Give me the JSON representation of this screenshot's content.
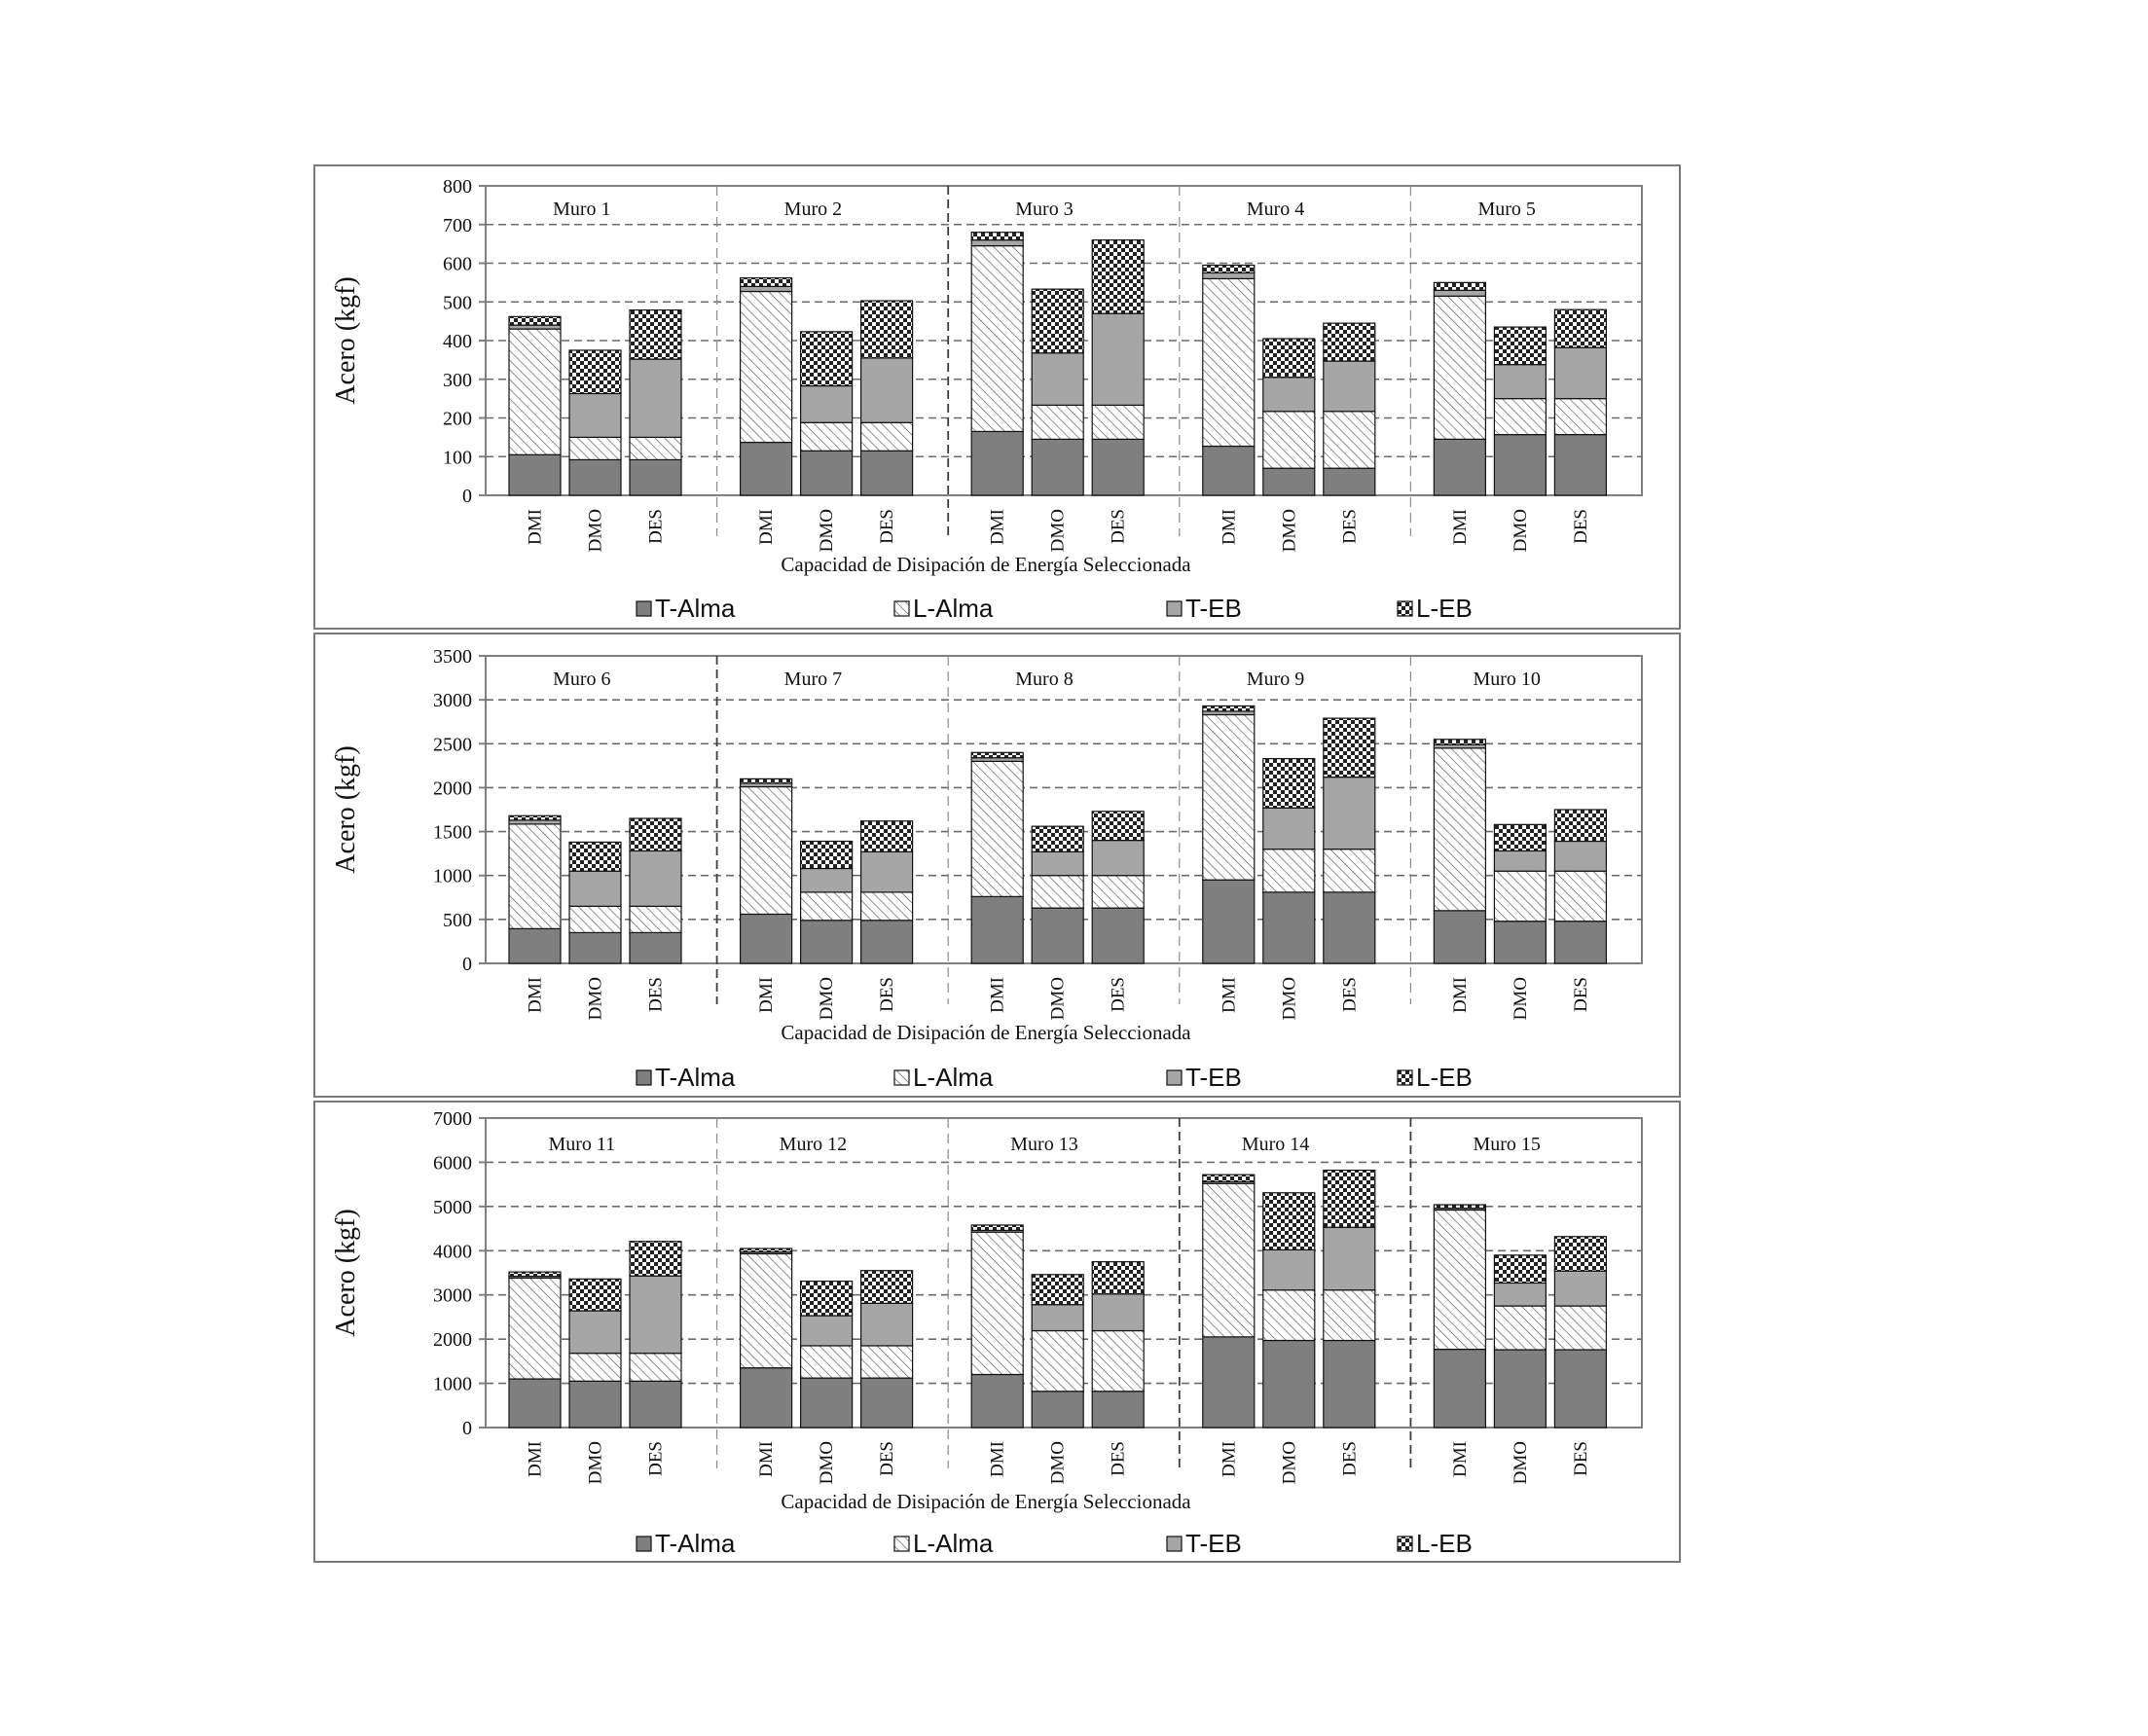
{
  "colors": {
    "t_alma": "#7f7f7f",
    "t_eb": "#a6a6a6",
    "axis": "#808080",
    "grid": "#6b6b6b",
    "divider": "#8c8c8c",
    "divider_strong": "#3d3d3d"
  },
  "legend": {
    "items": [
      {
        "label": "T-Alma",
        "pattern": "solid-dark"
      },
      {
        "label": "L-Alma",
        "pattern": "diagonal-hatch"
      },
      {
        "label": "T-EB",
        "pattern": "solid-light"
      },
      {
        "label": "L-EB",
        "pattern": "checkerboard"
      }
    ]
  },
  "chart_data": [
    {
      "type": "bar",
      "stacked": true,
      "ylabel": "Acero (kgf)",
      "xlabel": "Capacidad de Disipación de Energía Seleccionada",
      "ylim": [
        0,
        800
      ],
      "yticks": [
        0,
        100,
        200,
        300,
        400,
        500,
        600,
        700,
        800
      ],
      "grid": true,
      "legend_position": "bottom",
      "categories": [
        "DMI",
        "DMO",
        "DES"
      ],
      "group_divider_styles": [
        "light",
        "strong",
        "light",
        "light"
      ],
      "groups": [
        {
          "name": "Muro 1",
          "series": {
            "T-Alma": [
              105,
              92,
              92
            ],
            "L-Alma": [
              325,
              58,
              58
            ],
            "T-EB": [
              10,
              113,
              202
            ],
            "L-EB": [
              22,
              112,
              127
            ]
          }
        },
        {
          "name": "Muro 2",
          "series": {
            "T-Alma": [
              137,
              115,
              115
            ],
            "L-Alma": [
              390,
              73,
              73
            ],
            "T-EB": [
              13,
              95,
              167
            ],
            "L-EB": [
              22,
              140,
              148
            ]
          }
        },
        {
          "name": "Muro 3",
          "series": {
            "T-Alma": [
              165,
              145,
              145
            ],
            "L-Alma": [
              480,
              88,
              88
            ],
            "T-EB": [
              15,
              135,
              237
            ],
            "L-EB": [
              20,
              165,
              190
            ]
          }
        },
        {
          "name": "Muro 4",
          "series": {
            "T-Alma": [
              127,
              70,
              70
            ],
            "L-Alma": [
              433,
              147,
              147
            ],
            "T-EB": [
              15,
              88,
              130
            ],
            "L-EB": [
              20,
              100,
              98
            ]
          }
        },
        {
          "name": "Muro 5",
          "series": {
            "T-Alma": [
              145,
              157,
              157
            ],
            "L-Alma": [
              370,
              93,
              93
            ],
            "T-EB": [
              15,
              88,
              132
            ],
            "L-EB": [
              20,
              97,
              98
            ]
          }
        }
      ]
    },
    {
      "type": "bar",
      "stacked": true,
      "ylabel": "Acero (kgf)",
      "xlabel": "Capacidad de Disipación de Energía Seleccionada",
      "ylim": [
        0,
        3500
      ],
      "yticks": [
        0,
        500,
        1000,
        1500,
        2000,
        2500,
        3000,
        3500
      ],
      "grid": true,
      "legend_position": "bottom",
      "categories": [
        "DMI",
        "DMO",
        "DES"
      ],
      "group_divider_styles": [
        "strong",
        "light",
        "light",
        "light"
      ],
      "groups": [
        {
          "name": "Muro 6",
          "series": {
            "T-Alma": [
              395,
              350,
              350
            ],
            "L-Alma": [
              1190,
              300,
              300
            ],
            "T-EB": [
              45,
              400,
              630
            ],
            "L-EB": [
              50,
              330,
              370
            ]
          }
        },
        {
          "name": "Muro 7",
          "series": {
            "T-Alma": [
              560,
              490,
              490
            ],
            "L-Alma": [
              1450,
              320,
              320
            ],
            "T-EB": [
              40,
              270,
              460
            ],
            "L-EB": [
              50,
              310,
              350
            ]
          }
        },
        {
          "name": "Muro 8",
          "series": {
            "T-Alma": [
              760,
              630,
              630
            ],
            "L-Alma": [
              1540,
              370,
              370
            ],
            "T-EB": [
              40,
              270,
              400
            ],
            "L-EB": [
              60,
              290,
              330
            ]
          }
        },
        {
          "name": "Muro 9",
          "series": {
            "T-Alma": [
              950,
              810,
              810
            ],
            "L-Alma": [
              1880,
              490,
              490
            ],
            "T-EB": [
              40,
              470,
              820
            ],
            "L-EB": [
              60,
              560,
              670
            ]
          }
        },
        {
          "name": "Muro 10",
          "series": {
            "T-Alma": [
              600,
              480,
              480
            ],
            "L-Alma": [
              1850,
              570,
              570
            ],
            "T-EB": [
              40,
              230,
              340
            ],
            "L-EB": [
              60,
              300,
              360
            ]
          }
        }
      ]
    },
    {
      "type": "bar",
      "stacked": true,
      "ylabel": "Acero (kgf)",
      "xlabel": "Capacidad de Disipación de Energía Seleccionada",
      "ylim": [
        0,
        7000
      ],
      "yticks": [
        0,
        1000,
        2000,
        3000,
        4000,
        5000,
        6000,
        7000
      ],
      "grid": true,
      "legend_position": "bottom",
      "categories": [
        "DMI",
        "DMO",
        "DES"
      ],
      "group_divider_styles": [
        "light",
        "light",
        "strong",
        "strong"
      ],
      "groups": [
        {
          "name": "Muro 11",
          "series": {
            "T-Alma": [
              1100,
              1050,
              1050
            ],
            "L-Alma": [
              2280,
              630,
              630
            ],
            "T-EB": [
              40,
              960,
              1750
            ],
            "L-EB": [
              100,
              720,
              780
            ]
          }
        },
        {
          "name": "Muro 12",
          "series": {
            "T-Alma": [
              1350,
              1120,
              1120
            ],
            "L-Alma": [
              2580,
              730,
              730
            ],
            "T-EB": [
              40,
              680,
              960
            ],
            "L-EB": [
              80,
              780,
              740
            ]
          }
        },
        {
          "name": "Muro 13",
          "series": {
            "T-Alma": [
              1200,
              820,
              820
            ],
            "L-Alma": [
              3220,
              1370,
              1370
            ],
            "T-EB": [
              40,
              590,
              830
            ],
            "L-EB": [
              120,
              680,
              730
            ]
          }
        },
        {
          "name": "Muro 14",
          "series": {
            "T-Alma": [
              2050,
              1970,
              1970
            ],
            "L-Alma": [
              3470,
              1140,
              1140
            ],
            "T-EB": [
              40,
              910,
              1420
            ],
            "L-EB": [
              160,
              1290,
              1290
            ]
          }
        },
        {
          "name": "Muro 15",
          "series": {
            "T-Alma": [
              1770,
              1760,
              1760
            ],
            "L-Alma": [
              3150,
              990,
              990
            ],
            "T-EB": [
              40,
              520,
              790
            ],
            "L-EB": [
              80,
              630,
              780
            ]
          }
        }
      ]
    }
  ]
}
